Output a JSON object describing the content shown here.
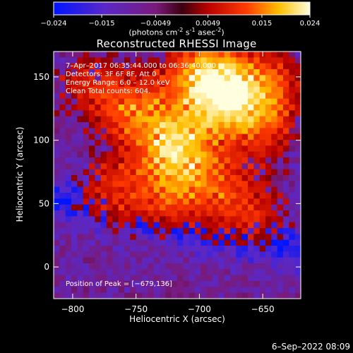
{
  "colorbar": {
    "tick_labels": [
      "-0.024",
      "-0.015",
      "-0.0049",
      "0.0049",
      "0.015",
      "0.024"
    ],
    "unit_text": "(photons cm",
    "unit_exp1": "-2",
    "unit_mid": " s",
    "unit_exp2": "-1",
    "unit_mid2": " asec",
    "unit_exp3": "-2",
    "unit_end": ")",
    "range": [
      -0.024,
      0.024
    ],
    "colormap": "rhessi-purple-red-yellow-white"
  },
  "chart_data": {
    "type": "heatmap",
    "title": "Reconstructed RHESSI Image",
    "xlabel": "Heliocentric X (arcsec)",
    "ylabel": "Heliocentric Y (arcsec)",
    "xlim": [
      -815,
      -620
    ],
    "ylim": [
      -25,
      170
    ],
    "xticks": [
      -800,
      -750,
      -700,
      -650
    ],
    "xtick_labels": [
      "−800",
      "−750",
      "−700",
      "−650"
    ],
    "yticks": [
      0,
      50,
      100,
      150
    ],
    "ytick_labels": [
      "0",
      "50",
      "100",
      "150"
    ],
    "grid": false,
    "peak": [
      -679,
      136
    ],
    "sources": [
      {
        "x": -679,
        "y": 136,
        "intensity": 1.0
      },
      {
        "x": -718,
        "y": 95,
        "intensity": 0.95
      },
      {
        "x": -752,
        "y": 125,
        "intensity": 0.7
      },
      {
        "x": -700,
        "y": 155,
        "intensity": 0.7
      },
      {
        "x": -648,
        "y": 110,
        "intensity": 0.55
      },
      {
        "x": -770,
        "y": 60,
        "intensity": 0.55
      },
      {
        "x": -725,
        "y": 55,
        "intensity": 0.5
      },
      {
        "x": -685,
        "y": 60,
        "intensity": 0.5
      },
      {
        "x": -655,
        "y": 40,
        "intensity": 0.45
      },
      {
        "x": -790,
        "y": 145,
        "intensity": 0.45
      },
      {
        "x": -640,
        "y": 150,
        "intensity": 0.5
      }
    ],
    "info_lines": [
      "7–Apr–2017 06:35:44.000 to 06:36:40.000",
      "Detectors: 3F 6F 8F, Att 0",
      "Energy Range: 6.0 – 12.0 keV",
      "Clean     Total counts: 604."
    ],
    "peak_text": "Position of Peak = [−679,136]"
  },
  "timestamp": "6–Sep–2022 08:09"
}
